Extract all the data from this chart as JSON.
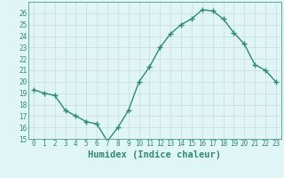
{
  "x": [
    0,
    1,
    2,
    3,
    4,
    5,
    6,
    7,
    8,
    9,
    10,
    11,
    12,
    13,
    14,
    15,
    16,
    17,
    18,
    19,
    20,
    21,
    22,
    23
  ],
  "y": [
    19.3,
    19.0,
    18.8,
    17.5,
    17.0,
    16.5,
    16.3,
    14.8,
    16.0,
    17.5,
    20.0,
    21.3,
    23.0,
    24.2,
    25.0,
    25.5,
    26.3,
    26.2,
    25.5,
    24.3,
    23.3,
    21.5,
    21.0,
    20.0
  ],
  "line_color": "#2E8B72",
  "marker": "+",
  "marker_size": 4,
  "bg_color": "#E0F5F5",
  "grid_color": "#C8DDD8",
  "xlabel": "Humidex (Indice chaleur)",
  "ylim": [
    15,
    27
  ],
  "yticks": [
    15,
    16,
    17,
    18,
    19,
    20,
    21,
    22,
    23,
    24,
    25,
    26
  ],
  "xticks": [
    0,
    1,
    2,
    3,
    4,
    5,
    6,
    7,
    8,
    9,
    10,
    11,
    12,
    13,
    14,
    15,
    16,
    17,
    18,
    19,
    20,
    21,
    22,
    23
  ],
  "tick_label_fontsize": 5.5,
  "xlabel_fontsize": 7.5,
  "line_width": 1.0,
  "marker_color": "#2E8B72"
}
